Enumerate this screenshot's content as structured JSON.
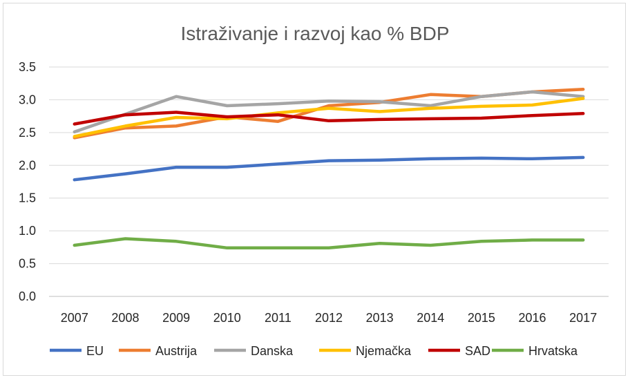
{
  "chart_data": {
    "type": "line",
    "title": "Istraživanje i razvoj kao % BDP",
    "categories": [
      "2007",
      "2008",
      "2009",
      "2010",
      "2011",
      "2012",
      "2013",
      "2014",
      "2015",
      "2016",
      "2017"
    ],
    "ylim": [
      0,
      3.5
    ],
    "yticks": [
      "0.0",
      "0.5",
      "1.0",
      "1.5",
      "2.0",
      "2.5",
      "3.0",
      "3.5"
    ],
    "grid": true,
    "legend": "bottom",
    "series": [
      {
        "name": "EU",
        "color": "#4472c4",
        "values": [
          1.78,
          1.87,
          1.97,
          1.97,
          2.02,
          2.07,
          2.08,
          2.1,
          2.11,
          2.1,
          2.12
        ]
      },
      {
        "name": "Austrija",
        "color": "#ed7d31",
        "values": [
          2.42,
          2.57,
          2.6,
          2.74,
          2.67,
          2.91,
          2.96,
          3.08,
          3.05,
          3.12,
          3.16
        ]
      },
      {
        "name": "Danska",
        "color": "#a5a5a5",
        "values": [
          2.51,
          2.78,
          3.05,
          2.91,
          2.94,
          2.98,
          2.97,
          2.91,
          3.05,
          3.12,
          3.05
        ]
      },
      {
        "name": "Njemačka",
        "color": "#ffc000",
        "values": [
          2.44,
          2.6,
          2.73,
          2.71,
          2.8,
          2.87,
          2.82,
          2.87,
          2.9,
          2.92,
          3.02
        ]
      },
      {
        "name": "SAD",
        "color": "#c00000",
        "values": [
          2.63,
          2.77,
          2.81,
          2.74,
          2.77,
          2.68,
          2.7,
          2.71,
          2.72,
          2.76,
          2.79
        ]
      },
      {
        "name": "Hrvatska",
        "color": "#70ad47",
        "values": [
          0.78,
          0.88,
          0.84,
          0.74,
          0.74,
          0.74,
          0.81,
          0.78,
          0.84,
          0.86,
          0.86
        ]
      }
    ]
  }
}
